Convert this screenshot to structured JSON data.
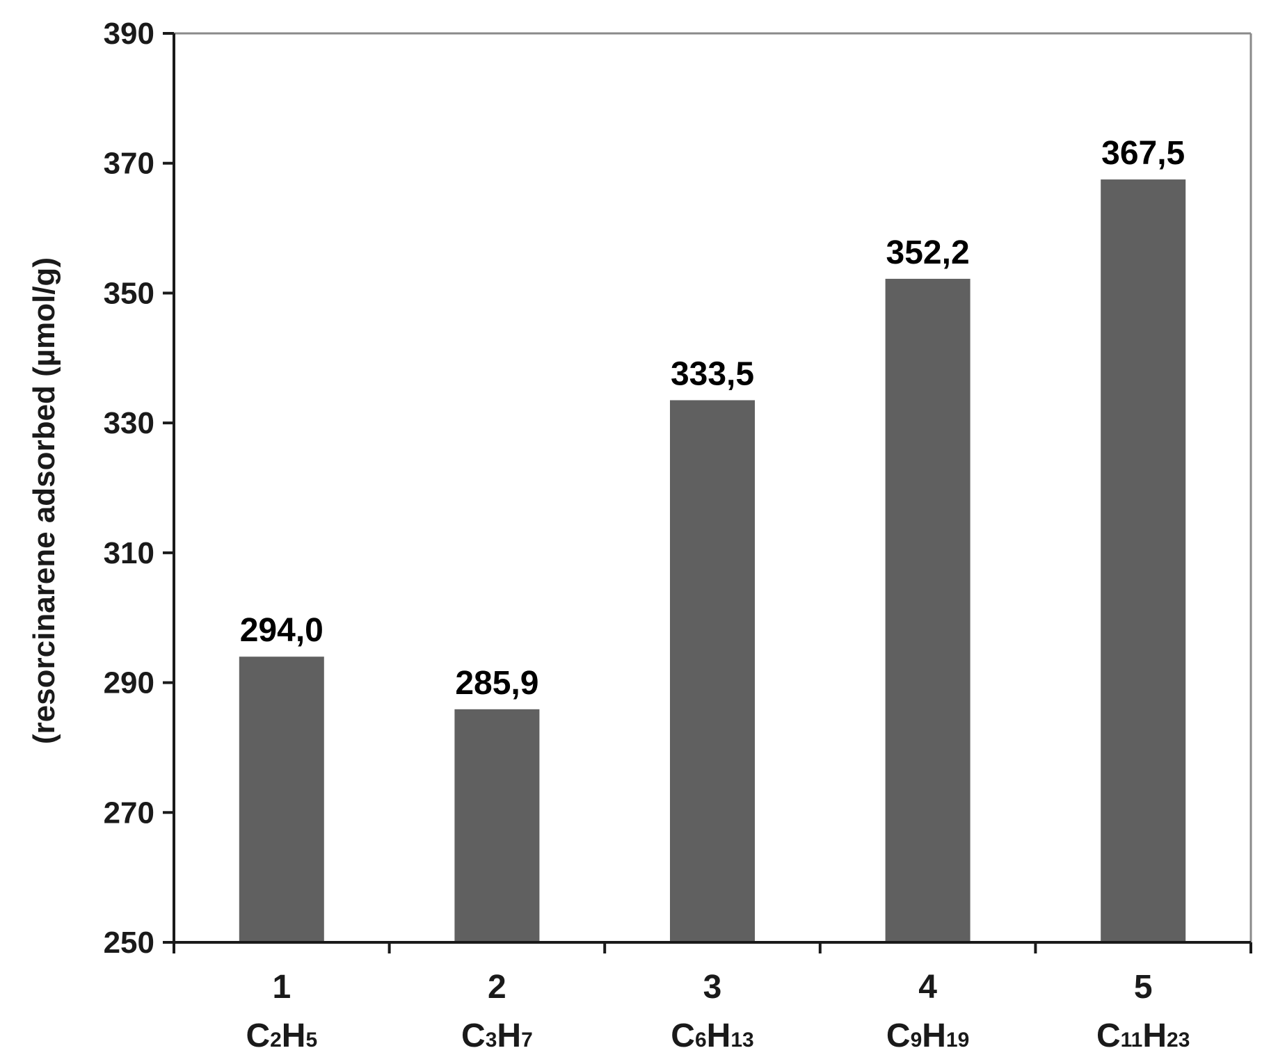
{
  "chart_data": {
    "type": "bar",
    "categories": [
      "1",
      "2",
      "3",
      "4",
      "5"
    ],
    "category_formulas": [
      [
        {
          "t": "C",
          "sub": false
        },
        {
          "t": "2",
          "sub": true
        },
        {
          "t": "H",
          "sub": false
        },
        {
          "t": "5",
          "sub": true
        }
      ],
      [
        {
          "t": "C",
          "sub": false
        },
        {
          "t": "3",
          "sub": true
        },
        {
          "t": "H",
          "sub": false
        },
        {
          "t": "7",
          "sub": true
        }
      ],
      [
        {
          "t": "C",
          "sub": false
        },
        {
          "t": "6",
          "sub": true
        },
        {
          "t": "H",
          "sub": false
        },
        {
          "t": "13",
          "sub": true
        }
      ],
      [
        {
          "t": "C",
          "sub": false
        },
        {
          "t": "9",
          "sub": true
        },
        {
          "t": "H",
          "sub": false
        },
        {
          "t": "19",
          "sub": true
        }
      ],
      [
        {
          "t": "C",
          "sub": false
        },
        {
          "t": "11",
          "sub": true
        },
        {
          "t": "H",
          "sub": false
        },
        {
          "t": "23",
          "sub": true
        }
      ]
    ],
    "values": [
      294.0,
      285.9,
      333.5,
      352.2,
      367.5
    ],
    "data_labels": [
      "294,0",
      "285,9",
      "333,5",
      "352,2",
      "367,5"
    ],
    "ylabel": "(resorcinarene adsorbed (µmol/g)",
    "ylim": [
      250,
      390
    ],
    "yticks": [
      250,
      270,
      290,
      310,
      330,
      350,
      370,
      390
    ],
    "grid": false,
    "bar_color": "#606060",
    "axis_color": "#1a1a1a",
    "frame_color": "#8a8a8a"
  }
}
